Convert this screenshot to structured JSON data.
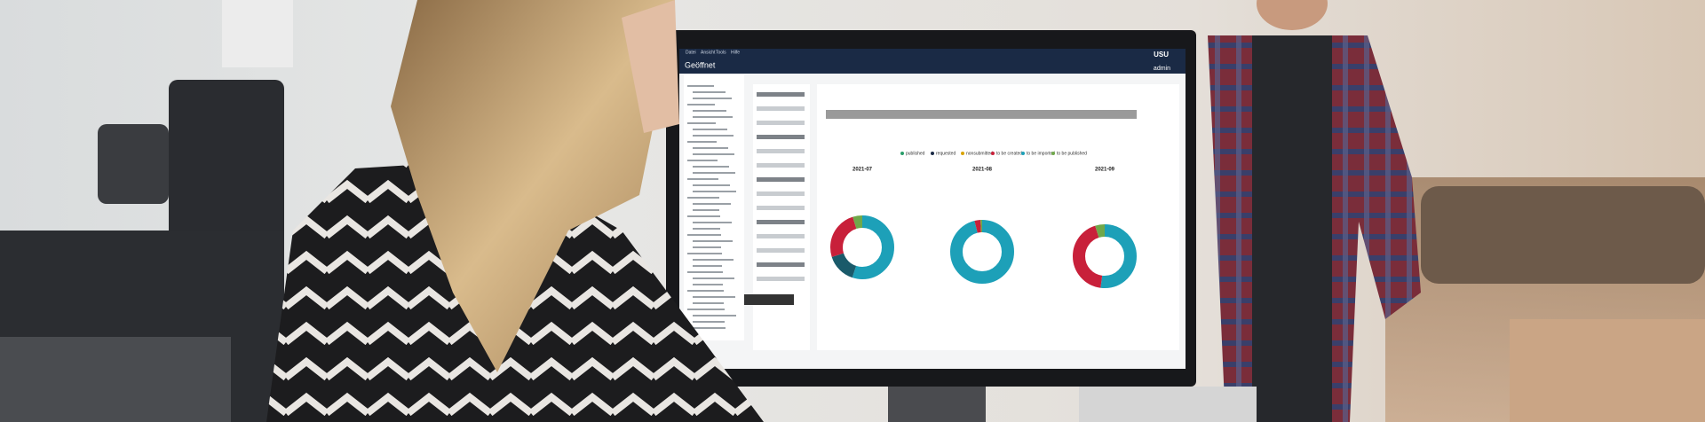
{
  "screen": {
    "menu": [
      "Datei",
      "Ansicht",
      "Tools",
      "Hilfe"
    ],
    "title": "Geöffnet",
    "logo": "USU",
    "user": "admin",
    "legend": [
      "published",
      "requested",
      "nonsubmitted",
      "to be created",
      "to be imported",
      "to be published"
    ],
    "charts": [
      "2021-07",
      "2021-08",
      "2021-09"
    ]
  }
}
